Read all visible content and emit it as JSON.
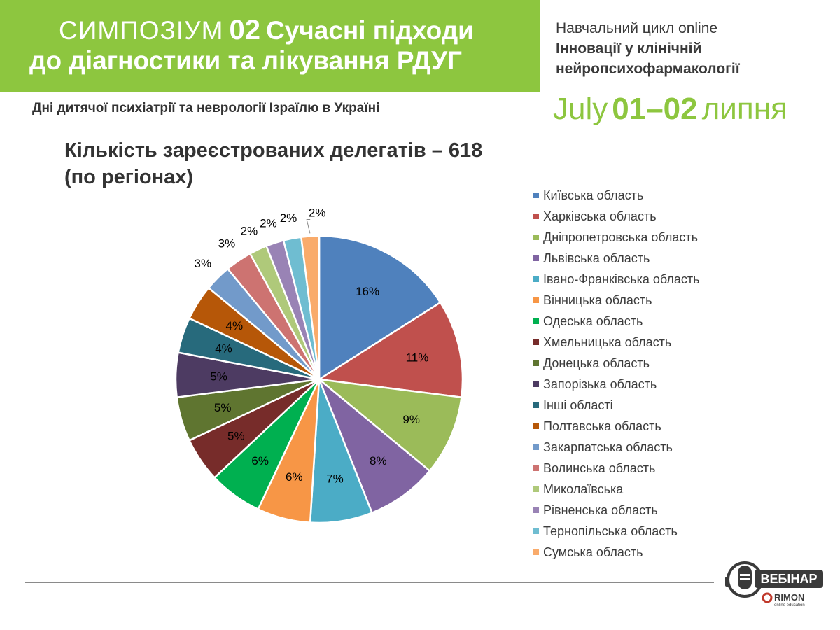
{
  "header": {
    "symposium_word": "СИМПОЗІУМ",
    "symposium_number": "02",
    "title_line1": "Сучасні підходи",
    "title_line2": "до діагностики та лікування РДУГ",
    "subheader": "Дні дитячої психіатрії та неврології Ізраїлю в Україні",
    "cycle_line1": "Навчальний цикл online",
    "cycle_line2": "Інновації у клінічній",
    "cycle_line3": "нейропсихофармакології",
    "date_prefix": "July",
    "date_days": "01–02",
    "date_suffix": "липня",
    "accent_color": "#8dc63f"
  },
  "logo": {
    "badge": "ВЕБІНАР",
    "brand": "RIMON",
    "tagline": "online education",
    "icon": "microphone-icon"
  },
  "chart_data": {
    "type": "pie",
    "title_line1": "Кількість зареєстрованих делегатів – 618",
    "title_line2": "(по регіонах)",
    "legend_position": "right",
    "slices": [
      {
        "label": "Київська область",
        "value": 16,
        "display": "16%",
        "color": "#4f81bd"
      },
      {
        "label": "Харківська область",
        "value": 11,
        "display": "11%",
        "color": "#c0504d"
      },
      {
        "label": "Дніпропетровська область",
        "value": 9,
        "display": "9%",
        "color": "#9bbb59"
      },
      {
        "label": "Львівська область",
        "value": 8,
        "display": "8%",
        "color": "#8064a2"
      },
      {
        "label": "Івано-Франківська область",
        "value": 7,
        "display": "7%",
        "color": "#4bacc6"
      },
      {
        "label": "Вінницька область",
        "value": 6,
        "display": "6%",
        "color": "#f79646"
      },
      {
        "label": "Одеська область",
        "value": 6,
        "display": "6%",
        "color": "#00b050"
      },
      {
        "label": "Хмельницька область",
        "value": 5,
        "display": "5%",
        "color": "#772c2a"
      },
      {
        "label": "Донецька область",
        "value": 5,
        "display": "5%",
        "color": "#5f7530"
      },
      {
        "label": "Запорізька область",
        "value": 5,
        "display": "5%",
        "color": "#4d3b62"
      },
      {
        "label": "Інші області",
        "value": 4,
        "display": "4%",
        "color": "#276a7c"
      },
      {
        "label": "Полтавська область",
        "value": 4,
        "display": "4%",
        "color": "#b65708"
      },
      {
        "label": "Закарпатська область",
        "value": 3,
        "display": "3%",
        "color": "#729aca"
      },
      {
        "label": "Волинська область",
        "value": 3,
        "display": "3%",
        "color": "#cd7371"
      },
      {
        "label": "Миколаївська",
        "value": 2,
        "display": "2%",
        "color": "#afc97a"
      },
      {
        "label": "Рівненська область",
        "value": 2,
        "display": "2%",
        "color": "#9983b5"
      },
      {
        "label": "Тернопільська область",
        "value": 2,
        "display": "2%",
        "color": "#6fbdd1"
      },
      {
        "label": "Сумська область",
        "value": 2,
        "display": "2%",
        "color": "#f9ab6b"
      }
    ]
  }
}
